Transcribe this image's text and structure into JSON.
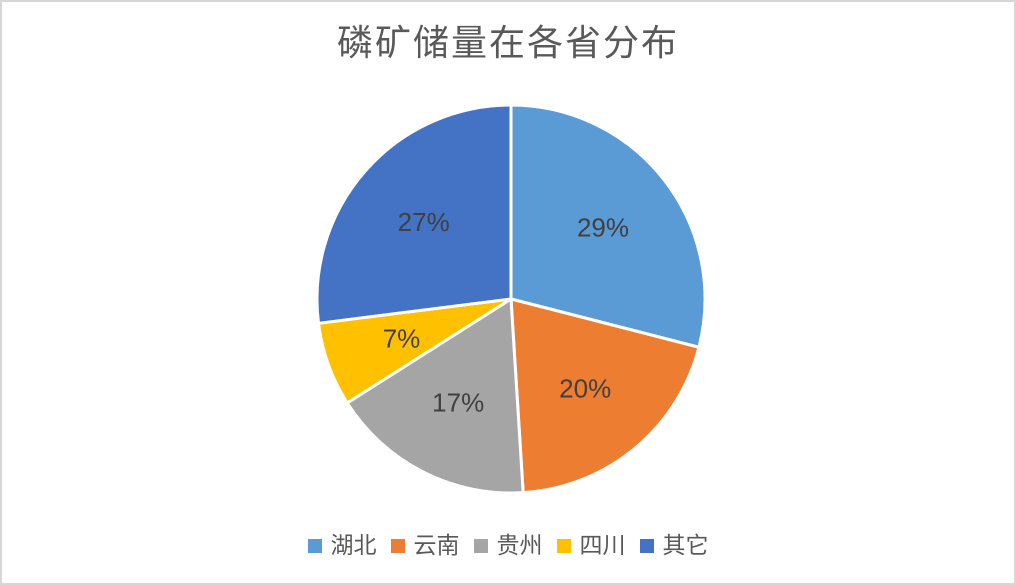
{
  "frame": {
    "background_color": "#FFFFFF",
    "border_color": "#D6D6D6"
  },
  "chart_data": {
    "type": "pie",
    "title": "磷矿储量在各省分布",
    "title_color": "#595959",
    "categories": [
      "湖北",
      "云南",
      "贵州",
      "四川",
      "其它"
    ],
    "values": [
      29,
      20,
      17,
      7,
      27
    ],
    "data_labels": [
      "29%",
      "20%",
      "17%",
      "7%",
      "27%"
    ],
    "colors": [
      "#5B9BD5",
      "#ED7D31",
      "#A5A5A5",
      "#FFC000",
      "#4472C4"
    ],
    "data_label_color": "#404040",
    "slice_border_color": "#FFFFFF",
    "start_angle_deg": 0,
    "direction": "clockwise",
    "legend_position": "bottom",
    "legend_text_color": "#595959"
  }
}
